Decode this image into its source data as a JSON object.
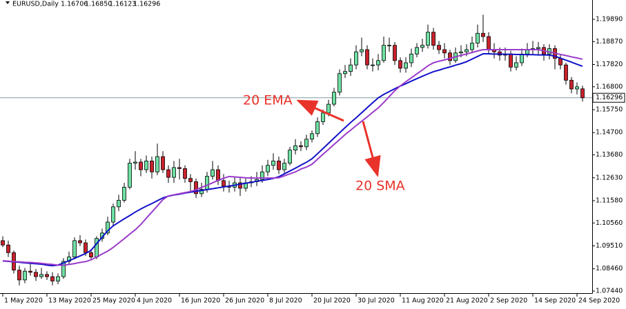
{
  "chart_data": {
    "type": "candlestick",
    "title": "EURUSD,Daily",
    "ohlc_labels": [
      "1.16706",
      "1.16850",
      "1.16123",
      "1.16296"
    ],
    "categories": [
      "1 May 2020",
      null,
      null,
      null,
      null,
      null,
      null,
      null,
      "13 May 2020",
      null,
      null,
      null,
      null,
      null,
      null,
      null,
      "25 May 2020",
      null,
      null,
      null,
      null,
      null,
      null,
      null,
      "4 Jun 2020",
      null,
      null,
      null,
      null,
      null,
      null,
      null,
      "16 Jun 2020",
      null,
      null,
      null,
      null,
      null,
      null,
      null,
      "26 Jun 2020",
      null,
      null,
      null,
      null,
      null,
      null,
      null,
      "8 Jul 2020",
      null,
      null,
      null,
      null,
      null,
      null,
      null,
      "20 Jul 2020",
      null,
      null,
      null,
      null,
      null,
      null,
      null,
      "30 Jul 2020",
      null,
      null,
      null,
      null,
      null,
      null,
      null,
      "11 Aug 2020",
      null,
      null,
      null,
      null,
      null,
      null,
      null,
      "21 Aug 2020",
      null,
      null,
      null,
      null,
      null,
      null,
      null,
      "2 Sep 2020",
      null,
      null,
      null,
      null,
      null,
      null,
      null,
      "14 Sep 2020",
      null,
      null,
      null,
      null,
      null,
      null,
      null,
      "24 Sep 2020",
      null
    ],
    "open": [
      1.0975,
      1.0955,
      1.092,
      1.084,
      1.0795,
      1.0835,
      1.083,
      1.081,
      1.082,
      1.081,
      1.079,
      1.081,
      1.088,
      1.09,
      1.0975,
      1.0965,
      1.092,
      1.09,
      1.0985,
      1.101,
      1.106,
      1.113,
      1.116,
      1.122,
      1.133,
      1.1335,
      1.13,
      1.134,
      1.129,
      1.136,
      1.13,
      1.1265,
      1.131,
      1.1305,
      1.126,
      1.1245,
      1.119,
      1.121,
      1.127,
      1.13,
      1.125,
      1.1225,
      1.122,
      1.124,
      1.1215,
      1.124,
      1.1245,
      1.1255,
      1.129,
      1.132,
      1.134,
      1.13,
      1.133,
      1.139,
      1.141,
      1.1405,
      1.144,
      1.1465,
      1.152,
      1.156,
      1.16,
      1.1655,
      1.174,
      1.175,
      1.178,
      1.184,
      1.185,
      1.178,
      1.178,
      1.18,
      1.187,
      1.187,
      1.18,
      1.1765,
      1.179,
      1.183,
      1.186,
      1.187,
      1.193,
      1.187,
      1.185,
      1.1835,
      1.18,
      1.1835,
      1.184,
      1.185,
      1.188,
      1.1925,
      1.191,
      1.185,
      1.184,
      1.1825,
      1.183,
      1.177,
      1.179,
      1.183,
      1.185,
      1.1855,
      1.186,
      1.183,
      1.1855,
      1.181,
      1.178,
      1.171,
      1.167,
      1.16706
    ],
    "high": [
      1.0995,
      1.0975,
      1.093,
      1.086,
      1.085,
      1.087,
      1.0845,
      1.085,
      1.0835,
      1.083,
      1.0825,
      1.0895,
      1.0925,
      1.099,
      1.1,
      1.098,
      1.0935,
      1.0995,
      1.103,
      1.1085,
      1.1145,
      1.1185,
      1.124,
      1.135,
      1.1385,
      1.135,
      1.1365,
      1.136,
      1.142,
      1.1385,
      1.132,
      1.134,
      1.135,
      1.132,
      1.128,
      1.126,
      1.124,
      1.129,
      1.134,
      1.132,
      1.128,
      1.125,
      1.127,
      1.1265,
      1.126,
      1.127,
      1.129,
      1.132,
      1.1345,
      1.1375,
      1.136,
      1.135,
      1.1405,
      1.144,
      1.143,
      1.146,
      1.148,
      1.154,
      1.1575,
      1.162,
      1.1675,
      1.176,
      1.178,
      1.181,
      1.187,
      1.1905,
      1.187,
      1.181,
      1.183,
      1.191,
      1.1905,
      1.1885,
      1.1815,
      1.1815,
      1.1855,
      1.188,
      1.19,
      1.1965,
      1.195,
      1.189,
      1.188,
      1.185,
      1.186,
      1.187,
      1.1875,
      1.191,
      1.1965,
      1.201,
      1.193,
      1.188,
      1.186,
      1.186,
      1.1845,
      1.182,
      1.1855,
      1.188,
      1.189,
      1.1885,
      1.1875,
      1.1875,
      1.187,
      1.1825,
      1.179,
      1.1725,
      1.17,
      1.1685
    ],
    "low": [
      1.0945,
      1.09,
      1.0825,
      1.077,
      1.078,
      1.0815,
      1.079,
      1.08,
      1.0795,
      1.077,
      1.0775,
      1.08,
      1.0865,
      1.089,
      1.095,
      1.0905,
      1.0885,
      1.089,
      1.097,
      1.1,
      1.1045,
      1.111,
      1.115,
      1.121,
      1.13,
      1.127,
      1.1285,
      1.126,
      1.1275,
      1.1285,
      1.124,
      1.124,
      1.1255,
      1.124,
      1.12,
      1.117,
      1.1175,
      1.1195,
      1.1255,
      1.123,
      1.12,
      1.1195,
      1.12,
      1.118,
      1.12,
      1.122,
      1.1225,
      1.124,
      1.127,
      1.13,
      1.128,
      1.1285,
      1.132,
      1.137,
      1.1385,
      1.139,
      1.1425,
      1.145,
      1.1505,
      1.1545,
      1.159,
      1.164,
      1.172,
      1.173,
      1.176,
      1.182,
      1.176,
      1.175,
      1.1755,
      1.179,
      1.184,
      1.178,
      1.1745,
      1.1745,
      1.177,
      1.1815,
      1.184,
      1.1855,
      1.185,
      1.183,
      1.181,
      1.178,
      1.179,
      1.1815,
      1.182,
      1.1835,
      1.186,
      1.1885,
      1.183,
      1.181,
      1.18,
      1.18,
      1.175,
      1.1755,
      1.1775,
      1.1815,
      1.183,
      1.1825,
      1.18,
      1.1805,
      1.176,
      1.176,
      1.169,
      1.165,
      1.1645,
      1.16123
    ],
    "close": [
      1.0955,
      1.092,
      1.084,
      1.0795,
      1.0835,
      1.083,
      1.081,
      1.082,
      1.081,
      1.079,
      1.081,
      1.088,
      1.09,
      1.0975,
      1.0965,
      1.092,
      1.09,
      1.0985,
      1.101,
      1.106,
      1.113,
      1.116,
      1.122,
      1.133,
      1.1335,
      1.13,
      1.134,
      1.129,
      1.136,
      1.13,
      1.1265,
      1.131,
      1.1305,
      1.126,
      1.1245,
      1.119,
      1.121,
      1.127,
      1.13,
      1.125,
      1.1225,
      1.122,
      1.124,
      1.1215,
      1.124,
      1.1245,
      1.1255,
      1.129,
      1.132,
      1.134,
      1.13,
      1.133,
      1.139,
      1.141,
      1.1405,
      1.144,
      1.1465,
      1.152,
      1.156,
      1.16,
      1.1655,
      1.174,
      1.175,
      1.178,
      1.184,
      1.185,
      1.178,
      1.178,
      1.18,
      1.187,
      1.187,
      1.18,
      1.1765,
      1.179,
      1.183,
      1.186,
      1.187,
      1.193,
      1.187,
      1.185,
      1.1835,
      1.18,
      1.1835,
      1.184,
      1.185,
      1.188,
      1.1925,
      1.191,
      1.185,
      1.184,
      1.1825,
      1.183,
      1.177,
      1.179,
      1.183,
      1.185,
      1.1855,
      1.186,
      1.183,
      1.1855,
      1.181,
      1.178,
      1.171,
      1.167,
      1.168,
      1.16296
    ],
    "up_color": "#6fe0a4",
    "down_color": "#c8222c",
    "series": [
      {
        "name": "20 EMA",
        "color": "#1010c8",
        "values": [
          1.0882,
          1.088,
          1.0878,
          1.0876,
          1.0873,
          1.0871,
          1.0869,
          1.0867,
          1.0863,
          1.086,
          1.0863,
          1.0873,
          1.0883,
          1.0894,
          1.0905,
          1.0916,
          1.0931,
          1.0961,
          1.0991,
          1.102,
          1.1043,
          1.1059,
          1.1075,
          1.109,
          1.1106,
          1.112,
          1.1133,
          1.1145,
          1.1158,
          1.1171,
          1.1179,
          1.1184,
          1.1188,
          1.1193,
          1.1197,
          1.1201,
          1.1205,
          1.1209,
          1.1213,
          1.1217,
          1.1221,
          1.1225,
          1.1229,
          1.1234,
          1.1238,
          1.1242,
          1.1247,
          1.1251,
          1.1255,
          1.126,
          1.1268,
          1.1281,
          1.1294,
          1.1307,
          1.1321,
          1.1334,
          1.135,
          1.1373,
          1.1397,
          1.1421,
          1.1445,
          1.1469,
          1.1493,
          1.1516,
          1.1538,
          1.1561,
          1.1584,
          1.1607,
          1.1629,
          1.1645,
          1.1658,
          1.1671,
          1.1683,
          1.1694,
          1.1706,
          1.1717,
          1.1728,
          1.1739,
          1.1749,
          1.1756,
          1.1764,
          1.1771,
          1.1779,
          1.1786,
          1.1795,
          1.1807,
          1.1819,
          1.1831,
          1.1831,
          1.183,
          1.183,
          1.1829,
          1.1829,
          1.1828,
          1.1828,
          1.1827,
          1.1827,
          1.1826,
          1.1826,
          1.1825,
          1.182,
          1.1811,
          1.1802,
          1.1793,
          1.1783,
          1.1774
        ]
      },
      {
        "name": "20 SMA",
        "color": "#9a3acb",
        "values": [
          1.0883,
          1.0881,
          1.0879,
          1.0878,
          1.0876,
          1.0875,
          1.0873,
          1.0871,
          1.0868,
          1.0866,
          1.0863,
          1.0862,
          1.0866,
          1.087,
          1.0875,
          1.0879,
          1.0887,
          1.09,
          1.0914,
          1.0927,
          1.0944,
          1.0964,
          1.0984,
          1.1005,
          1.1025,
          1.1049,
          1.1078,
          1.1106,
          1.1134,
          1.1163,
          1.118,
          1.1185,
          1.119,
          1.1195,
          1.12,
          1.1208,
          1.1219,
          1.1229,
          1.124,
          1.1251,
          1.1261,
          1.1269,
          1.1267,
          1.1265,
          1.1263,
          1.1262,
          1.1262,
          1.1262,
          1.1262,
          1.1262,
          1.1263,
          1.1272,
          1.1281,
          1.129,
          1.1303,
          1.1312,
          1.1325,
          1.1348,
          1.1371,
          1.1393,
          1.1416,
          1.1438,
          1.1461,
          1.1481,
          1.1502,
          1.1522,
          1.1542,
          1.1563,
          1.1583,
          1.1608,
          1.1635,
          1.1662,
          1.1684,
          1.1703,
          1.1721,
          1.1739,
          1.1757,
          1.1776,
          1.179,
          1.1797,
          1.1803,
          1.181,
          1.1817,
          1.1824,
          1.183,
          1.1837,
          1.1844,
          1.185,
          1.185,
          1.185,
          1.185,
          1.185,
          1.185,
          1.185,
          1.185,
          1.185,
          1.185,
          1.185,
          1.1845,
          1.1839,
          1.1834,
          1.1828,
          1.1823,
          1.1817,
          1.1812,
          1.1806
        ]
      }
    ],
    "ylim": [
      1.07345,
      1.20775
    ],
    "yticks": [
      {
        "value": 1.1989,
        "label": "1.19890"
      },
      {
        "value": 1.1887,
        "label": "1.18870"
      },
      {
        "value": 1.1782,
        "label": "1.17820"
      },
      {
        "value": 1.168,
        "label": "1.16800"
      },
      {
        "value": 1.1575,
        "label": "1.15750"
      },
      {
        "value": 1.147,
        "label": "1.14700"
      },
      {
        "value": 1.1368,
        "label": "1.13680"
      },
      {
        "value": 1.1263,
        "label": "1.12630"
      },
      {
        "value": 1.1158,
        "label": "1.11580"
      },
      {
        "value": 1.1056,
        "label": "1.10560"
      },
      {
        "value": 1.0951,
        "label": "1.09510"
      },
      {
        "value": 1.0846,
        "label": "1.08460"
      },
      {
        "value": 1.0744,
        "label": "1.07440"
      }
    ],
    "current_price": {
      "value": 1.16296,
      "label": "1.16296"
    }
  }
}
